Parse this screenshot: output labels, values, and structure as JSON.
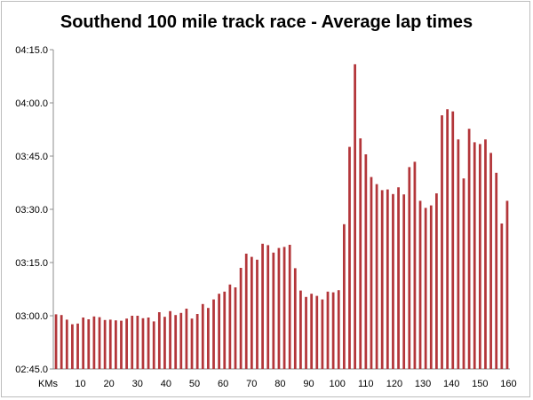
{
  "chart_data": {
    "type": "bar",
    "title": "Southend 100 mile track race - Average lap times",
    "xlabel": "KMs",
    "ylabel": "",
    "x_tick_labels": [
      "KMs",
      "10",
      "20",
      "30",
      "40",
      "50",
      "60",
      "70",
      "80",
      "90",
      "100",
      "110",
      "120",
      "130",
      "140",
      "150",
      "160"
    ],
    "y_tick_labels": [
      "02:45.0",
      "03:00.0",
      "03:15.0",
      "03:30.0",
      "03:45.0",
      "04:00.0",
      "04:15.0"
    ],
    "y_unit": "seconds per lap",
    "ylim": [
      165,
      255
    ],
    "y_ticks": [
      165,
      180,
      195,
      210,
      225,
      240,
      255
    ],
    "x_range": [
      1,
      160
    ],
    "bar_color": "#b3363a",
    "grid": false,
    "legend": "none",
    "series": [
      {
        "values": [
          180.4,
          180.2,
          178.9,
          177.6,
          177.8,
          179.5,
          179.0,
          179.8,
          179.6,
          178.8,
          178.9,
          178.7,
          178.6,
          179.2,
          180.0,
          180.0,
          179.3,
          179.5,
          178.4,
          181.0,
          179.7,
          181.3,
          180.2,
          180.8,
          182.0,
          179.2,
          180.5,
          183.3,
          182.2,
          184.6,
          186.2,
          186.8,
          188.8,
          188.0,
          193.5,
          197.5,
          196.6,
          195.8,
          200.3,
          199.9,
          197.8,
          199.1,
          199.4,
          200.0,
          193.4,
          187.1,
          185.3,
          186.2,
          185.6,
          184.6,
          186.8,
          186.6,
          187.2,
          205.8,
          227.6,
          250.9,
          230.0,
          225.5,
          219.1,
          217.1,
          215.4,
          215.6,
          214.3,
          216.2,
          214.2,
          221.9,
          223.4,
          212.4,
          210.4,
          211.1,
          214.5,
          236.5,
          238.2,
          237.6,
          229.7,
          218.7,
          232.7,
          228.9,
          228.4,
          229.7,
          225.9,
          220.3,
          206.0,
          212.4
        ]
      }
    ]
  }
}
